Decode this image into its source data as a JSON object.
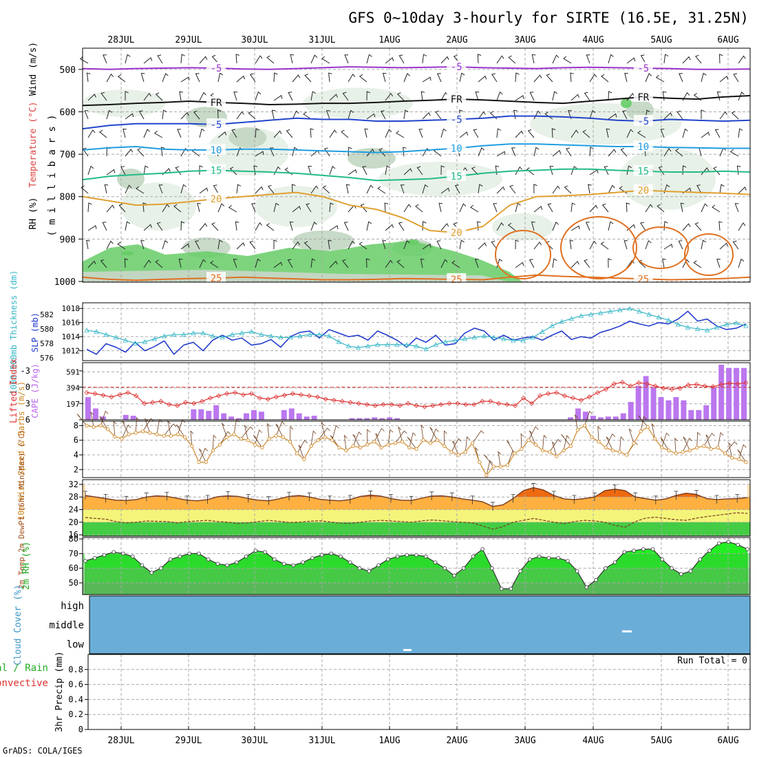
{
  "title": "GFS 0~10day 3-hourly for SIRTE (16.5E, 31.25N)",
  "footer": "GrADS: COLA/IGES",
  "dates": [
    "28JUL",
    "29JUL",
    "30JUL",
    "31JUL",
    "1AUG",
    "2AUG",
    "3AUG",
    "4AUG",
    "5AUG",
    "6AUG"
  ],
  "colors": {
    "grid": "#a8a8a8",
    "rh_light": "#e6f0e6",
    "rh_mid": "#c2d6c2",
    "rh_dark": "#8fae8f",
    "rh_green": "#66cc66",
    "cloud": "#6aaed8"
  },
  "chart_data": [
    {
      "type": "line",
      "name": "Upper-air cross section",
      "ylabel_parts": [
        "RH (%)",
        "Temperature (°C)",
        "Wind (m/s)"
      ],
      "ylabel_unit": "( m i l l i b a r s )",
      "yticks": [
        500,
        600,
        700,
        800,
        900,
        1000
      ],
      "ylim": [
        1000,
        450
      ],
      "temp_isotherms": [
        {
          "label": "-5",
          "color": "#9933cc",
          "p": [
            498,
            500,
            498,
            497,
            496,
            497,
            499,
            500,
            498,
            496,
            494,
            495,
            496,
            495,
            494,
            496,
            497,
            498,
            496,
            495,
            496,
            497,
            498,
            500,
            500,
            499
          ]
        },
        {
          "label": "FR",
          "color": "#111111",
          "p": [
            585,
            583,
            580,
            578,
            575,
            578,
            580,
            583,
            582,
            580,
            580,
            578,
            575,
            573,
            570,
            572,
            575,
            578,
            580,
            575,
            570,
            565,
            568,
            570,
            565,
            562
          ]
        },
        {
          "label": "-5",
          "color": "#2244cc",
          "p": [
            640,
            632,
            628,
            628,
            628,
            630,
            625,
            620,
            615,
            618,
            618,
            622,
            622,
            620,
            618,
            615,
            610,
            610,
            612,
            615,
            620,
            622,
            618,
            620,
            622,
            620
          ]
        },
        {
          "label": "10",
          "color": "#1e9de0",
          "p": [
            690,
            685,
            682,
            688,
            690,
            690,
            688,
            688,
            690,
            692,
            694,
            696,
            694,
            690,
            686,
            680,
            676,
            676,
            678,
            680,
            682,
            682,
            684,
            685,
            686,
            686
          ]
        },
        {
          "label": "15",
          "color": "#22bb88",
          "p": [
            760,
            752,
            748,
            745,
            740,
            738,
            740,
            742,
            745,
            750,
            755,
            762,
            760,
            758,
            752,
            745,
            740,
            738,
            735,
            735,
            738,
            740,
            742,
            742,
            740,
            742
          ]
        },
        {
          "label": "20",
          "color": "#e0a030",
          "p": [
            800,
            810,
            820,
            818,
            812,
            805,
            800,
            795,
            790,
            800,
            820,
            830,
            850,
            880,
            885,
            870,
            820,
            800,
            798,
            795,
            790,
            785,
            788,
            790,
            792,
            795
          ]
        },
        {
          "label": "25",
          "color": "#e07020",
          "p": [
            990,
            995,
            997,
            995,
            993,
            992,
            990,
            992,
            994,
            996,
            996,
            995,
            993,
            994,
            995,
            996,
            990,
            985,
            988,
            990,
            992,
            994,
            996,
            995,
            993,
            990
          ]
        }
      ]
    },
    {
      "type": "line",
      "name": "SLP and thickness",
      "ylabel_left": "1000-500mb Thickness (dm)",
      "ylabel_right": "SLP (mb)",
      "left_ticks": [
        576,
        578,
        580,
        582
      ],
      "slp_ticks": [
        1012,
        1014,
        1016,
        1018
      ],
      "series": [
        {
          "name": "SLP (mb)",
          "color": "#1a33cc",
          "values": [
            1012.2,
            1011.5,
            1013.0,
            1012.5,
            1011.8,
            1013.2,
            1012.0,
            1012.6,
            1013.4,
            1011.5,
            1012.8,
            1013.2,
            1012.0,
            1013.5,
            1014.2,
            1013.5,
            1013.8,
            1012.8,
            1013.0,
            1013.6,
            1012.5,
            1014.0,
            1014.6,
            1014.8,
            1013.8,
            1015.0,
            1014.5,
            1014.0,
            1014.2,
            1013.5,
            1014.8,
            1014.2,
            1013.5,
            1012.5,
            1013.8,
            1013.2,
            1014.2,
            1012.8,
            1013.0,
            1014.5,
            1015.2,
            1014.8,
            1013.5,
            1014.2,
            1013.5,
            1013.8,
            1014.0,
            1013.5,
            1014.2,
            1014.8,
            1013.6,
            1014.0,
            1013.8,
            1014.6,
            1015.0,
            1015.5,
            1016.2,
            1015.8,
            1015.5,
            1016.0,
            1015.8,
            1016.5,
            1017.6,
            1016.2,
            1016.5,
            1015.5,
            1015.0,
            1015.2,
            1015.8
          ]
        },
        {
          "name": "Thickness (dm)",
          "color": "#33b5c6",
          "values": [
            579.8,
            579.6,
            579.2,
            578.8,
            578.4,
            578.0,
            578.2,
            578.6,
            579.0,
            579.2,
            579.2,
            579.4,
            579.4,
            579.0,
            578.8,
            579.2,
            579.4,
            579.6,
            579.2,
            579.0,
            578.8,
            578.8,
            579.0,
            579.2,
            579.2,
            579.0,
            578.2,
            577.6,
            577.4,
            577.6,
            577.8,
            577.8,
            577.8,
            577.8,
            577.6,
            577.2,
            577.8,
            578.2,
            578.4,
            578.6,
            578.8,
            579.0,
            578.8,
            578.6,
            578.4,
            578.4,
            578.8,
            579.6,
            580.4,
            581.0,
            581.4,
            581.8,
            582.0,
            582.2,
            582.4,
            582.6,
            582.8,
            582.4,
            582.0,
            581.6,
            581.2,
            580.6,
            580.2,
            580.0,
            579.8,
            580.2,
            580.6,
            580.8,
            580.4
          ]
        }
      ]
    },
    {
      "type": "bar",
      "name": "CAPE and Lifted Index",
      "ylabel_left": "Lifted Index",
      "ylabel_right": "CAPE (J/kg)",
      "li_ticks": [
        -3,
        0,
        3,
        6
      ],
      "cape_ticks": [
        197,
        394,
        591
      ],
      "cape": [
        280,
        140,
        40,
        0,
        0,
        60,
        50,
        0,
        0,
        0,
        0,
        0,
        0,
        0,
        130,
        130,
        110,
        180,
        80,
        40,
        20,
        80,
        120,
        100,
        0,
        0,
        120,
        140,
        80,
        40,
        50,
        0,
        0,
        0,
        0,
        20,
        20,
        20,
        30,
        20,
        30,
        20,
        0,
        0,
        0,
        0,
        0,
        0,
        0,
        0,
        0,
        0,
        0,
        0,
        0,
        0,
        0,
        0,
        0,
        0,
        0,
        0,
        0,
        0,
        30,
        140,
        100,
        50,
        30,
        40,
        40,
        80,
        220,
        420,
        540,
        400,
        280,
        240,
        280,
        240,
        120,
        120,
        180,
        400,
        680,
        640,
        640,
        640
      ],
      "lifted_index": [
        1.0,
        1.2,
        1.5,
        1.8,
        1.4,
        1.0,
        1.6,
        3.0,
        2.8,
        2.6,
        3.2,
        3.4,
        2.8,
        3.0,
        2.6,
        2.0,
        1.6,
        1.2,
        1.0,
        1.4,
        1.2,
        2.0,
        2.2,
        1.8,
        1.5,
        1.2,
        1.4,
        1.6,
        1.8,
        2.2,
        2.4,
        2.6,
        2.8,
        3.0,
        3.2,
        3.4,
        3.2,
        3.2,
        3.4,
        3.0,
        3.4,
        3.6,
        3.4,
        3.2,
        3.0,
        3.0,
        3.2,
        3.2,
        2.6,
        2.6,
        3.0,
        3.2,
        3.4,
        2.0,
        3.0,
        1.6,
        1.2,
        1.0,
        1.6,
        2.0,
        2.4,
        1.8,
        1.0,
        0.4,
        -0.6,
        -0.9,
        -0.2,
        -0.8,
        -0.6,
        -0.2,
        0.2,
        0.4,
        0.2,
        -0.4,
        -0.5,
        -0.2,
        -0.1,
        -0.5,
        -0.7,
        -0.6,
        -0.8
      ]
    },
    {
      "type": "line",
      "name": "10m Wind Speed & Barbs",
      "ylabel": "10m Wind Speed & Barbs (m/s)",
      "yticks": [
        2,
        4,
        6,
        8
      ],
      "ylim": [
        1,
        8.5
      ],
      "values": [
        8.0,
        7.8,
        8.0,
        7.5,
        6.5,
        6.2,
        6.8,
        7.0,
        7.2,
        7.0,
        6.8,
        6.6,
        6.6,
        6.8,
        6.4,
        5.2,
        3.0,
        3.0,
        4.6,
        5.4,
        6.4,
        6.8,
        6.2,
        6.0,
        5.4,
        5.0,
        6.2,
        6.6,
        6.4,
        5.8,
        4.2,
        3.4,
        5.2,
        6.0,
        6.4,
        6.0,
        5.0,
        4.6,
        5.2,
        5.0,
        5.4,
        5.8,
        5.0,
        5.4,
        5.6,
        5.8,
        5.0,
        4.8,
        6.0,
        5.6,
        6.0,
        5.2,
        4.4,
        4.0,
        4.4,
        5.6,
        3.0,
        1.2,
        2.4,
        2.4,
        2.6,
        4.2,
        4.8,
        6.0,
        5.4,
        4.6,
        4.4,
        3.8,
        4.6,
        5.2,
        7.4,
        8.0,
        6.4,
        5.8,
        5.0,
        4.6,
        4.4,
        4.0,
        5.6,
        7.2,
        7.8,
        6.2,
        5.0,
        4.6,
        4.2,
        4.4,
        4.6,
        5.0,
        5.2,
        4.8,
        5.0,
        4.2,
        3.6,
        3.4,
        3.0
      ]
    },
    {
      "type": "area",
      "name": "2m Temp and DewPt",
      "ylabel": "2m Temp 2m DewPt (6hr Min/Max) (°C)",
      "yticks": [
        16,
        20,
        24,
        28,
        32
      ],
      "ylim": [
        16,
        32
      ],
      "temp": [
        28.5,
        28.0,
        27.5,
        27.0,
        26.9,
        27.2,
        28.0,
        28.4,
        28.2,
        27.6,
        27.0,
        26.8,
        27.2,
        28.1,
        28.4,
        28.2,
        27.5,
        27.0,
        26.8,
        27.4,
        28.2,
        28.5,
        28.0,
        27.3,
        27.0,
        26.8,
        27.2,
        28.2,
        28.6,
        28.3,
        27.5,
        27.0,
        26.9,
        27.6,
        28.3,
        28.4,
        28.0,
        27.4,
        27.0,
        26.5,
        25.0,
        25.5,
        27.5,
        30.0,
        31.0,
        30.2,
        28.5,
        27.4,
        27.2,
        27.5,
        28.0,
        30.0,
        30.5,
        30.0,
        28.0,
        27.5,
        27.0,
        27.4,
        28.5,
        29.2,
        28.8,
        27.5,
        27.2,
        27.4,
        27.5,
        27.8
      ],
      "dewpt": [
        21.5,
        21.2,
        21.0,
        20.2,
        19.8,
        20.0,
        20.4,
        20.3,
        20.2,
        19.8,
        20.2,
        20.4,
        20.6,
        20.2,
        20.0,
        19.6,
        19.8,
        20.2,
        20.6,
        20.3,
        19.9,
        20.0,
        20.3,
        20.5,
        20.1,
        19.7,
        19.6,
        20.0,
        20.4,
        20.6,
        20.4,
        20.2,
        20.0,
        20.4,
        20.7,
        20.5,
        20.2,
        20.0,
        19.8,
        18.8,
        17.8,
        18.6,
        20.0,
        20.6,
        21.2,
        20.6,
        20.0,
        19.5,
        20.2,
        20.6,
        20.4,
        20.0,
        19.0,
        18.4,
        20.2,
        21.3,
        21.6,
        21.2,
        20.8,
        20.6,
        21.3,
        21.8,
        22.2,
        22.6,
        23.0,
        22.8
      ]
    },
    {
      "type": "area",
      "name": "2m RH",
      "ylabel": "2m RH (%)",
      "yticks": [
        50,
        60,
        70,
        80
      ],
      "ylim": [
        42,
        81
      ],
      "values": [
        65,
        67,
        69,
        71,
        70,
        68,
        62,
        57,
        60,
        66,
        68,
        70,
        70,
        66,
        63,
        62,
        64,
        68,
        72,
        71,
        66,
        63,
        62,
        64,
        67,
        69,
        70,
        68,
        64,
        60,
        58,
        62,
        66,
        68,
        69,
        69,
        68,
        64,
        60,
        55,
        60,
        68,
        73,
        60,
        46,
        46,
        58,
        66,
        68,
        67,
        67,
        65,
        58,
        47,
        52,
        60,
        64,
        71,
        72,
        73,
        73,
        66,
        60,
        56,
        58,
        66,
        72,
        77,
        78,
        76,
        73
      ]
    },
    {
      "type": "area",
      "name": "Cloud Cover",
      "ylabel": "Cloud Cover (%)",
      "levels": [
        "high",
        "middle",
        "low"
      ]
    },
    {
      "type": "bar",
      "name": "3hr Precip",
      "ylabel_left": "Total / Rain",
      "ylabel_left2": "Convective",
      "ylabel": "3hr Precip (mm)",
      "yticks": [
        "0",
        "0.2",
        "0.4",
        "0.6",
        "0.8"
      ],
      "ylim": [
        0,
        1
      ],
      "run_total": "Run Total = 0",
      "values": []
    }
  ]
}
